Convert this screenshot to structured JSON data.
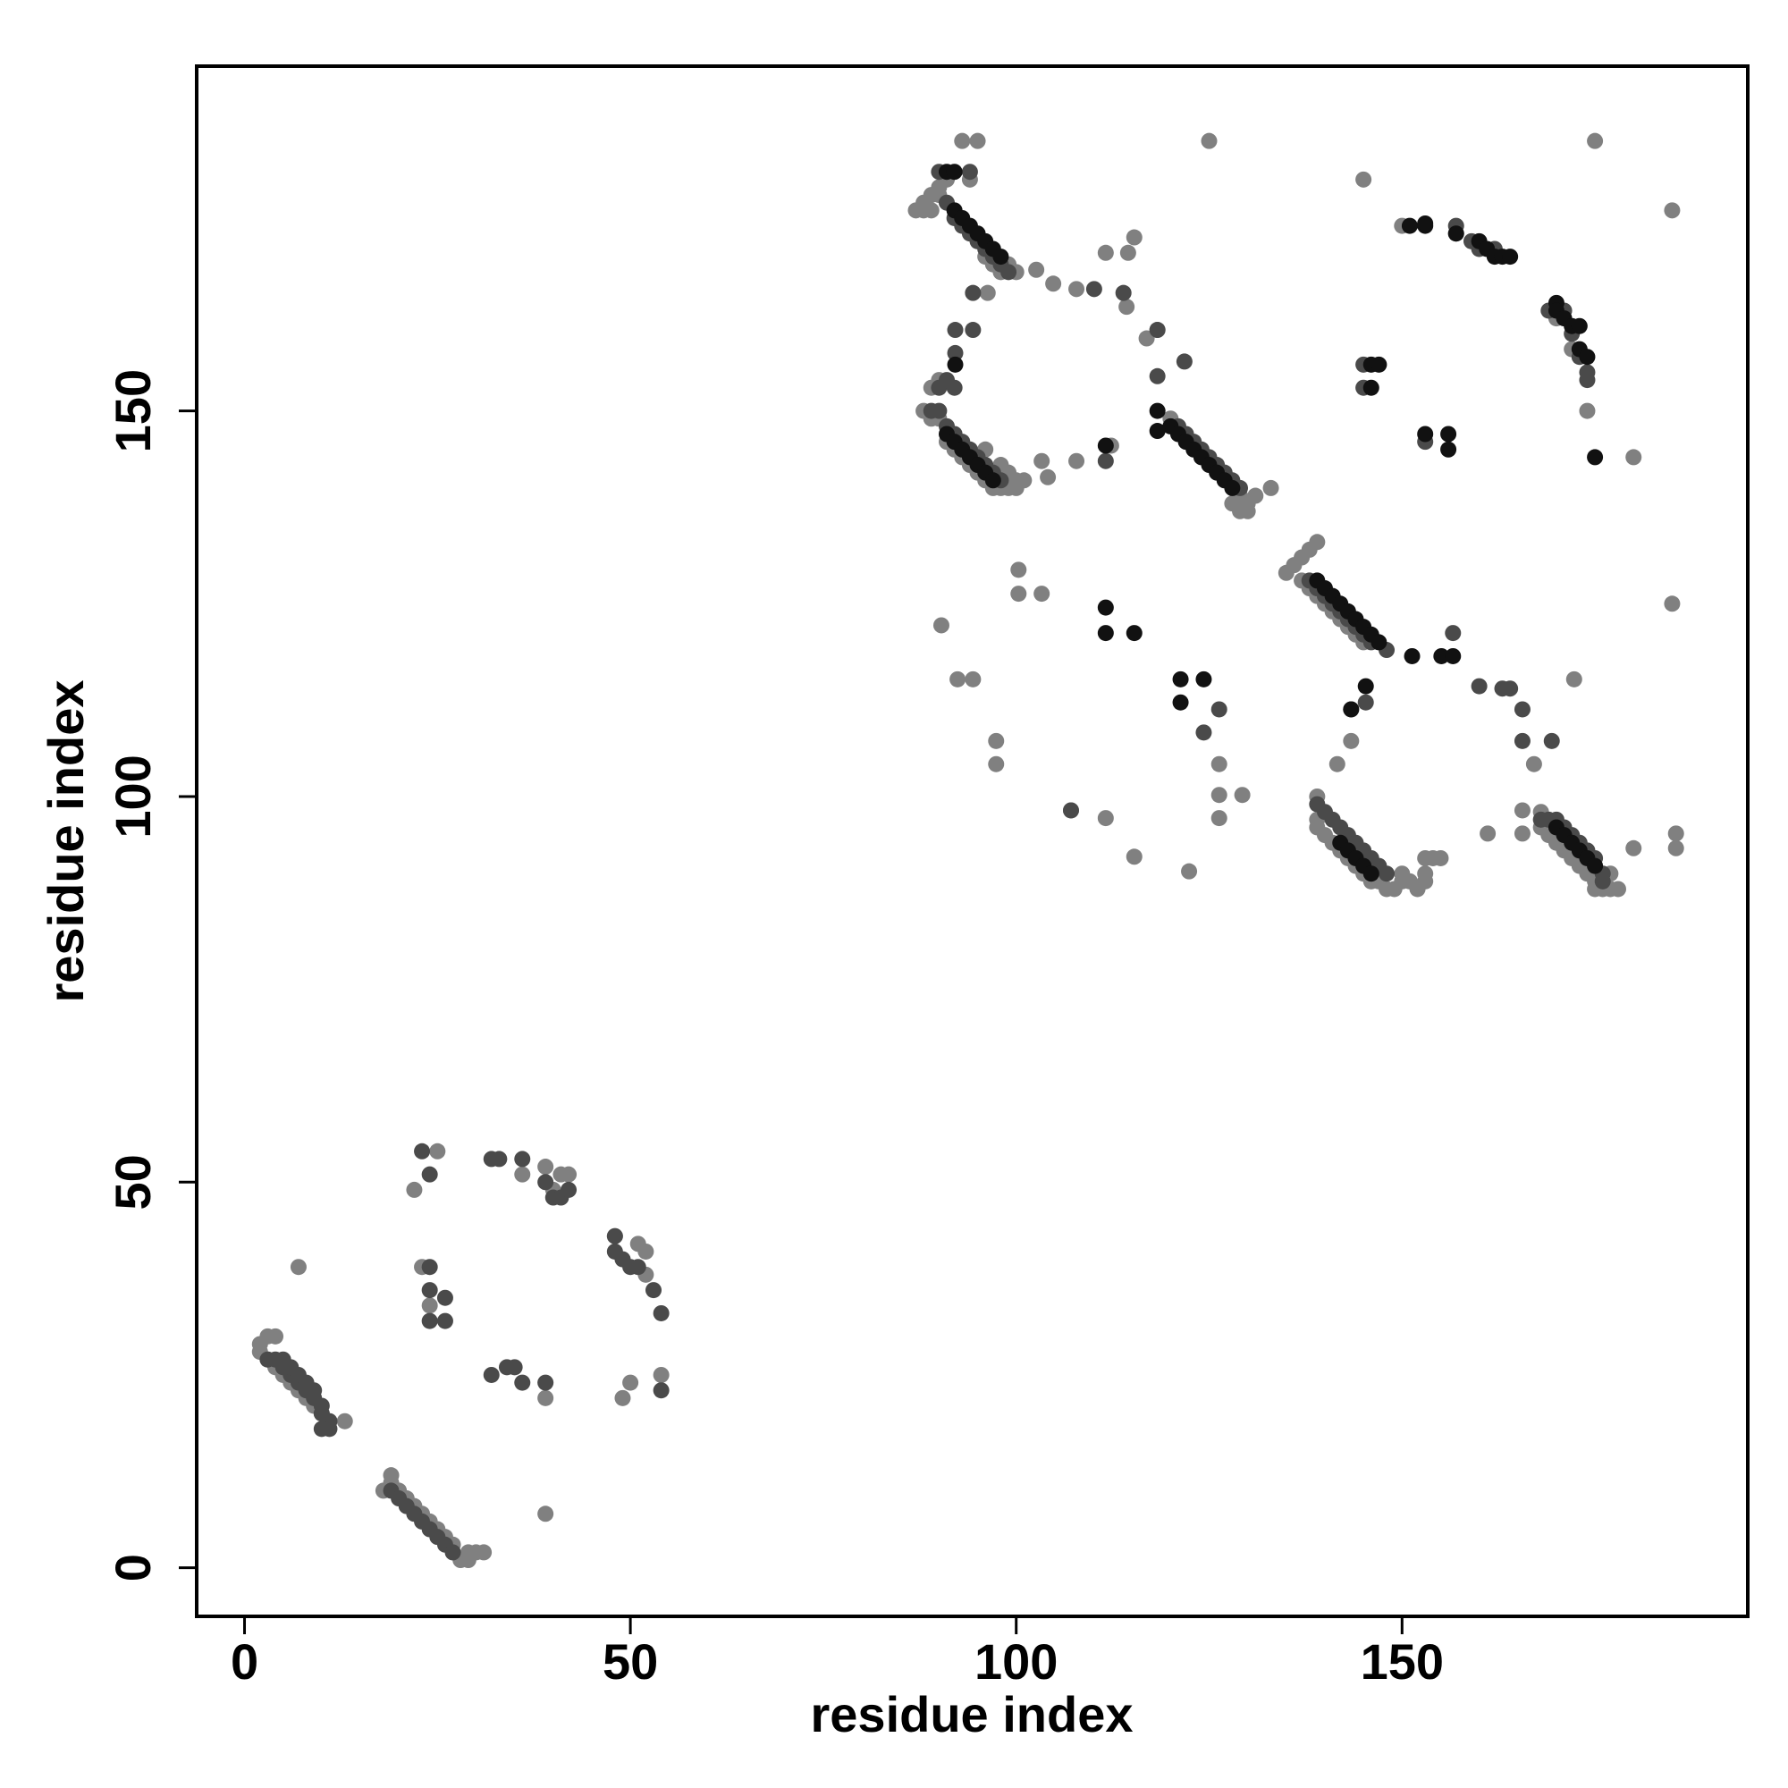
{
  "chart_data": {
    "type": "scatter",
    "x_label": "residue index",
    "y_label": "residue index",
    "xlim": [
      -6.2,
      194.8
    ],
    "ylim": [
      -6.3,
      194.7
    ],
    "xticks": [
      0,
      50,
      100,
      150
    ],
    "yticks": [
      0,
      50,
      100,
      150
    ],
    "series": [
      {
        "color": "#808080",
        "x": [
          2,
          2,
          3,
          4,
          3,
          4,
          5,
          6,
          7,
          8,
          9,
          10,
          11,
          13,
          18,
          19,
          19,
          20,
          21,
          22,
          23,
          24,
          25,
          26,
          27,
          27,
          28,
          29,
          29,
          30,
          31,
          7,
          22,
          23,
          24,
          25,
          36,
          39,
          39,
          39,
          40,
          41,
          42,
          49,
          50,
          51,
          52,
          52,
          54,
          48,
          120,
          129,
          130,
          130,
          131,
          133,
          129,
          128,
          135,
          136,
          137,
          138,
          139,
          137,
          138,
          139,
          140,
          141,
          142,
          143,
          144,
          145,
          139,
          139,
          139,
          140,
          141,
          142,
          143,
          144,
          145,
          146,
          147,
          148,
          149,
          150,
          150,
          151,
          152,
          153,
          153,
          153,
          154,
          155,
          168,
          168,
          169,
          170,
          171,
          172,
          173,
          174,
          175,
          175,
          176,
          177,
          177,
          178,
          87,
          88,
          89,
          88,
          89,
          90,
          90,
          91,
          93,
          95,
          94,
          96,
          97,
          98,
          99,
          100,
          88,
          89,
          89,
          90,
          90,
          91,
          92,
          93,
          94,
          95,
          96,
          97,
          98,
          99,
          100,
          101,
          96,
          98,
          99,
          100,
          150,
          157,
          170,
          172,
          174,
          145,
          180,
          185,
          185,
          175,
          125,
          90.3,
          92.4,
          94.4,
          97.4,
          97.4,
          100.3,
          103.3,
          107.1,
          111.6,
          115.3,
          122.4,
          126.3,
          126.3,
          129.3,
          126.3,
          172.3,
          165.6,
          167.1,
          143.4,
          141.6,
          161.1,
          165.6,
          180,
          102.6,
          104.8,
          107.8,
          111.6,
          115.3,
          114.5,
          96.3,
          103.3,
          107.8,
          112.3,
          116.9,
          118.3,
          114.3,
          185.5,
          185.5,
          100.3,
          104.1
        ],
        "values": [
          28,
          29,
          30,
          30,
          27,
          26,
          25,
          24,
          23,
          22,
          21,
          20,
          19,
          19,
          10,
          11,
          12,
          10,
          9,
          8,
          7,
          6,
          5,
          4,
          3,
          2,
          1,
          1,
          2,
          2,
          2,
          39,
          49,
          39,
          34,
          54,
          51,
          52,
          22,
          7,
          49,
          51,
          51,
          22,
          24,
          42,
          41,
          38,
          25,
          43,
          149,
          139,
          138,
          137,
          139,
          140,
          137,
          138,
          129,
          130,
          131,
          132,
          133,
          128,
          127,
          126,
          125,
          124,
          123,
          122,
          121,
          120,
          100,
          97,
          96,
          95,
          94,
          93,
          92,
          91,
          90,
          89,
          89,
          88,
          88,
          89,
          90,
          89,
          88,
          89,
          90,
          92,
          92,
          92,
          98,
          96,
          95,
          94,
          93,
          92,
          91,
          90,
          89,
          88,
          88,
          88,
          90,
          88,
          176,
          176,
          176,
          177,
          178,
          178,
          179,
          180,
          185,
          185,
          180,
          170,
          169,
          168,
          169,
          168,
          150,
          149,
          153,
          154,
          149,
          146,
          145,
          144,
          143,
          142,
          141,
          140,
          140,
          140,
          140,
          141,
          145,
          143,
          142,
          141,
          174,
          173,
          162,
          158,
          150,
          180,
          144,
          176,
          125,
          185,
          185,
          122.2,
          115.2,
          115.2,
          107.2,
          104.2,
          129.4,
          126.3,
          98.2,
          97.2,
          92.2,
          90.3,
          104.2,
          100.2,
          100.2,
          97.2,
          115.2,
          98.2,
          104.2,
          107.2,
          104.2,
          95.2,
          95.2,
          93.3,
          168.3,
          166.5,
          165.8,
          170.5,
          172.5,
          170.5,
          165.3,
          143.5,
          143.5,
          145.5,
          159.4,
          160.5,
          163.5,
          95.2,
          93.3,
          126.3,
          141.4
        ]
      },
      {
        "color": "#4a4a4a",
        "x": [
          3,
          4,
          5,
          5,
          6,
          6,
          7,
          7,
          8,
          8,
          9,
          9,
          10,
          10,
          11,
          11,
          10,
          19,
          20,
          21,
          22,
          23,
          24,
          25,
          26,
          27,
          23,
          24,
          24,
          24,
          24,
          26,
          26,
          32,
          32,
          33,
          34,
          35,
          36,
          36,
          39,
          40,
          41,
          42,
          39,
          48,
          48,
          49,
          50,
          51,
          53,
          54,
          54,
          121,
          122,
          123,
          124,
          125,
          126,
          127,
          128,
          129,
          138,
          139,
          140,
          141,
          142,
          143,
          144,
          145,
          146,
          148,
          139,
          140,
          141,
          142,
          143,
          144,
          145,
          146,
          147,
          148,
          168,
          169,
          170,
          171,
          172,
          173,
          174,
          175,
          176,
          176,
          90,
          91,
          92,
          93,
          94,
          95,
          96,
          97,
          98,
          99,
          94,
          89,
          90,
          90,
          91,
          92,
          93,
          94,
          95,
          96,
          97,
          98,
          91,
          92,
          157,
          159,
          160,
          162,
          169,
          171,
          172,
          173,
          174,
          174,
          145,
          145,
          153,
          164,
          163,
          92.1,
          94.4,
          92.1,
          94.4,
          110.1,
          113.9,
          118.3,
          118.3,
          121.8,
          111.6,
          107.1,
          126.3,
          124.3,
          165.6,
          169.4,
          165.6,
          145.3,
          156.6,
          160,
          143.4
        ],
        "values": [
          27,
          27,
          26,
          27,
          25,
          26,
          24,
          25,
          23,
          24,
          22,
          23,
          21,
          20,
          19,
          18,
          18,
          10,
          9,
          8,
          7,
          6,
          5,
          4,
          3,
          2,
          54,
          51,
          39,
          36,
          32,
          35,
          32,
          25,
          53,
          53,
          26,
          26,
          53,
          24,
          50,
          48,
          48,
          49,
          24,
          41,
          43,
          40,
          39,
          39,
          36,
          33,
          23,
          148,
          147,
          146,
          145,
          144,
          143,
          142,
          141,
          140,
          128,
          127,
          126,
          125,
          124,
          123,
          122,
          121,
          120,
          119,
          99,
          98,
          97,
          96,
          95,
          94,
          93,
          92,
          91,
          90,
          97,
          97,
          97,
          96,
          95,
          94,
          93,
          92,
          90,
          89,
          181,
          177,
          175,
          174,
          173,
          172,
          171,
          170,
          169,
          168,
          181,
          150,
          150,
          153,
          148,
          147,
          146,
          145,
          144,
          143,
          142,
          141,
          154,
          153,
          174,
          172,
          171,
          171,
          163,
          163,
          160,
          157,
          155,
          154,
          156,
          153,
          146,
          114,
          114,
          160.5,
          160.5,
          157.5,
          165.3,
          165.8,
          165.3,
          160.5,
          154.5,
          156.4,
          143.5,
          98.2,
          111.3,
          108.3,
          107.2,
          107.2,
          111.3,
          112.2,
          121.2,
          114.3,
          111.3
        ]
      },
      {
        "color": "#111111",
        "x": [
          120,
          121,
          122,
          123,
          124,
          125,
          126,
          127,
          128,
          139,
          140,
          141,
          142,
          143,
          144,
          145,
          146,
          147,
          142,
          143,
          144,
          145,
          146,
          170,
          171,
          172,
          173,
          174,
          175,
          91,
          92,
          92,
          93,
          94,
          95,
          96,
          97,
          98,
          91,
          92,
          93,
          94,
          95,
          96,
          97,
          151,
          153,
          157,
          160,
          161,
          162,
          163,
          164,
          170,
          170,
          171,
          172,
          173,
          173,
          174,
          175,
          146,
          147,
          146,
          153,
          156,
          156,
          92.1,
          111.6,
          115.3,
          111.6,
          121.3,
          124.3,
          121.3,
          145.3,
          143.4,
          151.3,
          155.1,
          156.6,
          111.6,
          118.3,
          118.3,
          153
        ],
        "values": [
          148,
          147,
          146,
          145,
          144,
          143,
          142,
          141,
          140,
          128,
          127,
          126,
          125,
          124,
          123,
          122,
          121,
          120,
          94,
          93,
          92,
          91,
          90,
          96,
          95,
          94,
          93,
          92,
          91,
          181,
          181,
          176,
          175,
          174,
          173,
          172,
          171,
          170,
          147,
          146,
          145,
          144,
          143,
          142,
          141,
          174,
          174,
          173,
          172,
          171,
          170,
          170,
          170,
          164,
          163,
          162,
          161,
          161,
          158,
          157,
          144,
          156,
          156,
          153,
          147,
          147,
          145,
          156,
          124.5,
          121.2,
          121.2,
          115.2,
          115.2,
          112.2,
          114.3,
          111.3,
          118.2,
          118.2,
          118.2,
          145.5,
          147.4,
          150,
          174.3
        ]
      }
    ]
  }
}
